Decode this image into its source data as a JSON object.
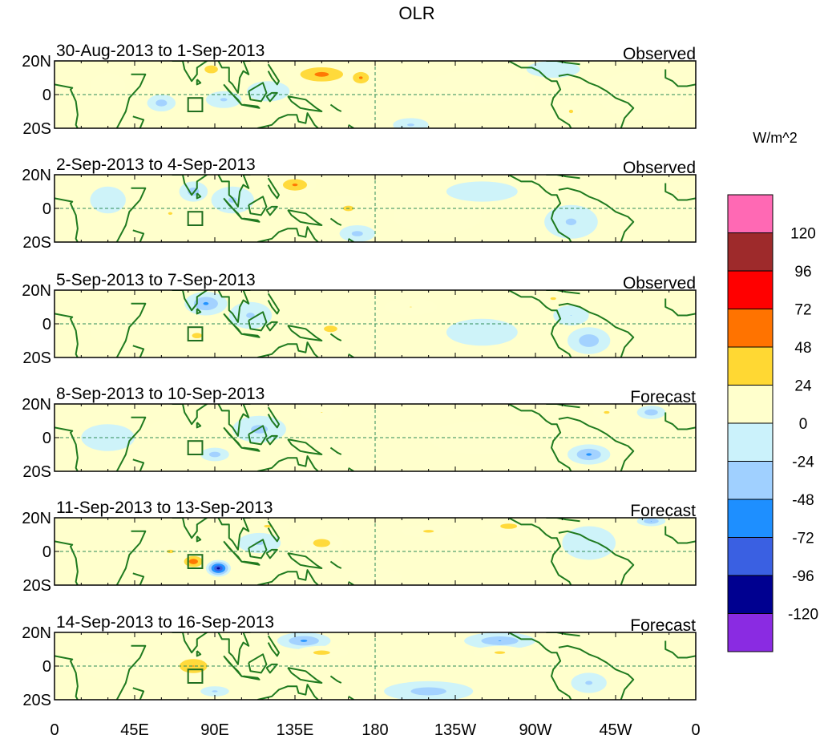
{
  "chart_data": {
    "type": "heatmap",
    "title": "OLR",
    "colorbar": {
      "unit_label": "W/m^2",
      "levels": [
        120,
        96,
        72,
        48,
        24,
        0,
        -24,
        -48,
        -72,
        -96,
        -120
      ],
      "colors": [
        "#ff69b4",
        "#9e2a2b",
        "#ff0000",
        "#ff7300",
        "#ffd833",
        "#ffffcc",
        "#cbf2fb",
        "#a0d0ff",
        "#1e8fff",
        "#3a60e2",
        "#000090",
        "#8a2be2"
      ]
    },
    "x_axis": {
      "range_deg": [
        0,
        360
      ],
      "ticks": [
        {
          "lon": 0,
          "label": "0"
        },
        {
          "lon": 45,
          "label": "45E"
        },
        {
          "lon": 90,
          "label": "90E"
        },
        {
          "lon": 135,
          "label": "135E"
        },
        {
          "lon": 180,
          "label": "180"
        },
        {
          "lon": 225,
          "label": "135W"
        },
        {
          "lon": 270,
          "label": "90W"
        },
        {
          "lon": 315,
          "label": "45W"
        },
        {
          "lon": 360,
          "label": "0"
        }
      ]
    },
    "y_axis": {
      "range_deg": [
        -20,
        20
      ],
      "ticks": [
        {
          "lat": 20,
          "label": "20N"
        },
        {
          "lat": 0,
          "label": "0"
        },
        {
          "lat": -20,
          "label": "20S"
        }
      ]
    },
    "reference_lines": {
      "equator_lat": 0,
      "dateline_lon": 180
    },
    "box_region": {
      "lon_min": 75,
      "lon_max": 83,
      "lat_min": -10,
      "lat_max": -2
    },
    "panels": [
      {
        "date_range": "30-Aug-2013 to 1-Sep-2013",
        "kind": "Observed",
        "anomalies": [
          {
            "lon": 150,
            "lat": 12,
            "rlon": 20,
            "rlat": 7,
            "value": 60
          },
          {
            "lon": 172,
            "lat": 10,
            "rlon": 8,
            "rlat": 6,
            "value": 55
          },
          {
            "lon": 88,
            "lat": 15,
            "rlon": 8,
            "rlat": 5,
            "value": 45
          },
          {
            "lon": 60,
            "lat": -5,
            "rlon": 8,
            "rlat": 5,
            "value": -40
          },
          {
            "lon": 95,
            "lat": -3,
            "rlon": 10,
            "rlat": 5,
            "value": -30
          },
          {
            "lon": 120,
            "lat": 2,
            "rlon": 12,
            "rlat": 6,
            "value": -25
          },
          {
            "lon": 200,
            "lat": -18,
            "rlon": 10,
            "rlat": 4,
            "value": -30
          },
          {
            "lon": 280,
            "lat": 15,
            "rlon": 15,
            "rlat": 5,
            "value": -20
          },
          {
            "lon": 290,
            "lat": -10,
            "rlon": 6,
            "rlat": 5,
            "value": 30
          },
          {
            "lon": 30,
            "lat": 5,
            "rlon": 10,
            "rlat": 8,
            "value": 10
          },
          {
            "lon": 240,
            "lat": 5,
            "rlon": 30,
            "rlat": 10,
            "value": 8
          },
          {
            "lon": 330,
            "lat": 0,
            "rlon": 25,
            "rlat": 15,
            "value": 6
          }
        ]
      },
      {
        "date_range": "2-Sep-2013 to 4-Sep-2013",
        "kind": "Observed",
        "anomalies": [
          {
            "lon": 135,
            "lat": 14,
            "rlon": 12,
            "rlat": 6,
            "value": 55
          },
          {
            "lon": 165,
            "lat": 0,
            "rlon": 15,
            "rlat": 8,
            "value": 30
          },
          {
            "lon": 78,
            "lat": 10,
            "rlon": 8,
            "rlat": 6,
            "value": -40
          },
          {
            "lon": 100,
            "lat": 5,
            "rlon": 12,
            "rlat": 8,
            "value": -30
          },
          {
            "lon": 65,
            "lat": -3,
            "rlon": 6,
            "rlat": 4,
            "value": 30
          },
          {
            "lon": 170,
            "lat": -15,
            "rlon": 10,
            "rlat": 5,
            "value": -35
          },
          {
            "lon": 290,
            "lat": -8,
            "rlon": 15,
            "rlat": 10,
            "value": -30
          },
          {
            "lon": 240,
            "lat": 10,
            "rlon": 20,
            "rlat": 6,
            "value": -20
          },
          {
            "lon": 30,
            "lat": 5,
            "rlon": 10,
            "rlat": 8,
            "value": -15
          },
          {
            "lon": 350,
            "lat": 10,
            "rlon": 10,
            "rlat": 6,
            "value": 25
          },
          {
            "lon": 215,
            "lat": -5,
            "rlon": 25,
            "rlat": 10,
            "value": 8
          }
        ]
      },
      {
        "date_range": "5-Sep-2013 to 7-Sep-2013",
        "kind": "Observed",
        "anomalies": [
          {
            "lon": 85,
            "lat": 12,
            "rlon": 12,
            "rlat": 7,
            "value": -55
          },
          {
            "lon": 110,
            "lat": 5,
            "rlon": 12,
            "rlat": 8,
            "value": -30
          },
          {
            "lon": 80,
            "lat": -7,
            "rlon": 7,
            "rlat": 4,
            "value": 40
          },
          {
            "lon": 155,
            "lat": -3,
            "rlon": 12,
            "rlat": 6,
            "value": 35
          },
          {
            "lon": 200,
            "lat": 10,
            "rlon": 15,
            "rlat": 5,
            "value": 25
          },
          {
            "lon": 300,
            "lat": -10,
            "rlon": 12,
            "rlat": 8,
            "value": -45
          },
          {
            "lon": 290,
            "lat": 5,
            "rlon": 10,
            "rlat": 6,
            "value": -25
          },
          {
            "lon": 280,
            "lat": 15,
            "rlon": 8,
            "rlat": 4,
            "value": 30
          },
          {
            "lon": 240,
            "lat": -5,
            "rlon": 20,
            "rlat": 8,
            "value": -10
          },
          {
            "lon": 30,
            "lat": -5,
            "rlon": 10,
            "rlat": 6,
            "value": 10
          }
        ]
      },
      {
        "date_range": "8-Sep-2013 to 10-Sep-2013",
        "kind": "Forecast",
        "anomalies": [
          {
            "lon": 115,
            "lat": 5,
            "rlon": 15,
            "rlat": 8,
            "value": -35
          },
          {
            "lon": 90,
            "lat": -10,
            "rlon": 8,
            "rlat": 4,
            "value": -40
          },
          {
            "lon": 300,
            "lat": -10,
            "rlon": 12,
            "rlat": 6,
            "value": -55
          },
          {
            "lon": 335,
            "lat": 15,
            "rlon": 8,
            "rlat": 4,
            "value": -45
          },
          {
            "lon": 310,
            "lat": 15,
            "rlon": 8,
            "rlat": 4,
            "value": 30
          },
          {
            "lon": 150,
            "lat": 15,
            "rlon": 12,
            "rlat": 5,
            "value": 25
          },
          {
            "lon": 65,
            "lat": 5,
            "rlon": 12,
            "rlat": 6,
            "value": 10
          },
          {
            "lon": 240,
            "lat": 0,
            "rlon": 30,
            "rlat": 10,
            "value": 6
          },
          {
            "lon": 30,
            "lat": 0,
            "rlon": 15,
            "rlat": 8,
            "value": -8
          }
        ]
      },
      {
        "date_range": "11-Sep-2013 to 13-Sep-2013",
        "kind": "Forecast",
        "anomalies": [
          {
            "lon": 78,
            "lat": -6,
            "rlon": 8,
            "rlat": 5,
            "value": 70
          },
          {
            "lon": 92,
            "lat": -10,
            "rlon": 7,
            "rlat": 5,
            "value": -110
          },
          {
            "lon": 65,
            "lat": 0,
            "rlon": 10,
            "rlat": 5,
            "value": 30
          },
          {
            "lon": 150,
            "lat": 5,
            "rlon": 12,
            "rlat": 6,
            "value": 40
          },
          {
            "lon": 115,
            "lat": 5,
            "rlon": 12,
            "rlat": 6,
            "value": -30
          },
          {
            "lon": 120,
            "lat": 15,
            "rlon": 12,
            "rlat": 4,
            "value": 30
          },
          {
            "lon": 210,
            "lat": 12,
            "rlon": 15,
            "rlat": 4,
            "value": 30
          },
          {
            "lon": 255,
            "lat": 15,
            "rlon": 15,
            "rlat": 5,
            "value": 35
          },
          {
            "lon": 335,
            "lat": 18,
            "rlon": 8,
            "rlat": 3,
            "value": -50
          },
          {
            "lon": 300,
            "lat": 5,
            "rlon": 15,
            "rlat": 10,
            "value": -20
          },
          {
            "lon": 180,
            "lat": -15,
            "rlon": 15,
            "rlat": 5,
            "value": 8
          }
        ]
      },
      {
        "date_range": "14-Sep-2013 to 16-Sep-2013",
        "kind": "Forecast",
        "anomalies": [
          {
            "lon": 78,
            "lat": 0,
            "rlon": 15,
            "rlat": 8,
            "value": 50
          },
          {
            "lon": 140,
            "lat": 15,
            "rlon": 15,
            "rlat": 5,
            "value": -55
          },
          {
            "lon": 150,
            "lat": 8,
            "rlon": 15,
            "rlat": 4,
            "value": 35
          },
          {
            "lon": 210,
            "lat": -15,
            "rlon": 25,
            "rlat": 6,
            "value": -40
          },
          {
            "lon": 250,
            "lat": 15,
            "rlon": 20,
            "rlat": 5,
            "value": -50
          },
          {
            "lon": 250,
            "lat": 8,
            "rlon": 15,
            "rlat": 4,
            "value": 30
          },
          {
            "lon": 300,
            "lat": -10,
            "rlon": 10,
            "rlat": 6,
            "value": -30
          },
          {
            "lon": 90,
            "lat": -15,
            "rlon": 8,
            "rlat": 3,
            "value": -30
          },
          {
            "lon": 30,
            "lat": 0,
            "rlon": 15,
            "rlat": 8,
            "value": 20
          }
        ]
      }
    ]
  }
}
